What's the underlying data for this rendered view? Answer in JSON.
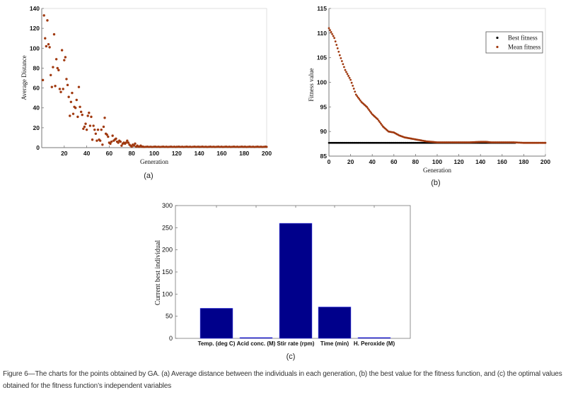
{
  "colors": {
    "mean_series": "#A0390F",
    "best_series": "#000000",
    "bar_fill": "#00008B",
    "axis": "#777777"
  },
  "caption": "Figure 6—The charts for the points obtained by GA. (a) Average distance between the individuals in each generation, (b) the best value for the fitness function, and (c) the optimal values obtained for the fitness function’s independent variables",
  "chart_data": [
    {
      "id": "a",
      "type": "scatter",
      "sublabel": "(a)",
      "title": "",
      "xlabel": "Generation",
      "ylabel": "Average Distance",
      "xlim": [
        0,
        200
      ],
      "ylim": [
        0,
        140
      ],
      "xticks": [
        20,
        40,
        60,
        80,
        100,
        120,
        140,
        160,
        180,
        200
      ],
      "yticks": [
        0,
        20,
        40,
        60,
        80,
        100,
        120,
        140
      ],
      "grid": false,
      "series": [
        {
          "name": "Average Distance",
          "x": [
            1,
            2,
            3,
            4,
            5,
            6,
            7,
            8,
            9,
            10,
            11,
            12,
            13,
            14,
            15,
            16,
            17,
            18,
            19,
            20,
            21,
            22,
            23,
            24,
            25,
            26,
            27,
            28,
            29,
            30,
            31,
            32,
            33,
            34,
            35,
            36,
            37,
            38,
            39,
            40,
            41,
            42,
            43,
            44,
            45,
            46,
            47,
            48,
            49,
            50,
            51,
            52,
            53,
            54,
            55,
            56,
            57,
            58,
            59,
            60,
            61,
            62,
            63,
            64,
            65,
            66,
            67,
            68,
            69,
            70,
            71,
            72,
            73,
            74,
            75,
            76,
            77,
            78,
            79,
            80,
            81,
            82,
            83,
            84,
            85,
            86,
            87,
            88,
            89,
            90
          ],
          "y": [
            68,
            133,
            110,
            102,
            128,
            104,
            101,
            73,
            61,
            81,
            114,
            62,
            89,
            80,
            78,
            59,
            56,
            98,
            59,
            88,
            91,
            69,
            63,
            51,
            32,
            46,
            55,
            34,
            41,
            40,
            48,
            31,
            61,
            41,
            36,
            33,
            19,
            21,
            24,
            18,
            32,
            35,
            22,
            31,
            8,
            22,
            18,
            14,
            7,
            18,
            8,
            7,
            18,
            3,
            21,
            30,
            14,
            13,
            11,
            5,
            4,
            6,
            12,
            7,
            8,
            9,
            6,
            5,
            7,
            6,
            2,
            4,
            5,
            4,
            5,
            7,
            5,
            3,
            2,
            1,
            3,
            2,
            4,
            1,
            2,
            1,
            1,
            2,
            1,
            1
          ]
        },
        {
          "name": "Average Distance (tail)",
          "x_start": 91,
          "x_end": 200,
          "y": 0.6
        }
      ]
    },
    {
      "id": "b",
      "type": "scatter",
      "sublabel": "(b)",
      "title": "",
      "xlabel": "Generation",
      "ylabel": "Fitness value",
      "xlim": [
        0,
        200
      ],
      "ylim": [
        85,
        115
      ],
      "xticks": [
        0,
        20,
        40,
        60,
        80,
        100,
        120,
        140,
        160,
        180,
        200
      ],
      "yticks": [
        85,
        90,
        95,
        100,
        105,
        110,
        115
      ],
      "grid": false,
      "legend": {
        "placement": "top-right",
        "entries": [
          "Best fitness",
          "Mean fitness"
        ]
      },
      "series": [
        {
          "name": "Best fitness",
          "x_range": [
            0,
            200
          ],
          "constant_y": 87.7
        },
        {
          "name": "Mean fitness",
          "x": [
            0,
            5,
            10,
            15,
            20,
            25,
            30,
            35,
            40,
            45,
            50,
            55,
            60,
            65,
            70,
            75,
            80,
            85,
            90,
            95,
            100,
            110,
            120,
            130,
            140,
            145,
            150,
            160,
            170,
            180,
            190,
            200
          ],
          "y": [
            111.0,
            109.0,
            105.5,
            102.5,
            100.5,
            97.5,
            96.0,
            95.0,
            93.5,
            92.5,
            91.0,
            90.0,
            89.8,
            89.2,
            88.8,
            88.6,
            88.4,
            88.2,
            88.0,
            87.9,
            87.8,
            87.8,
            87.8,
            87.8,
            87.9,
            87.9,
            87.8,
            87.8,
            87.8,
            87.7,
            87.7,
            87.7
          ]
        }
      ]
    },
    {
      "id": "c",
      "type": "bar",
      "sublabel": "(c)",
      "title": "",
      "xlabel": "",
      "ylabel": "Current best individual",
      "categories": [
        "Temp. (deg C)",
        "Acid conc. (M)",
        "Stir rate (rpm)",
        "Time (min)",
        "H. Peroxide (M)"
      ],
      "values": [
        68,
        2,
        260,
        71,
        2
      ],
      "ylim": [
        0,
        300
      ],
      "yticks": [
        0,
        50,
        100,
        150,
        200,
        250,
        300
      ],
      "grid": false
    }
  ]
}
